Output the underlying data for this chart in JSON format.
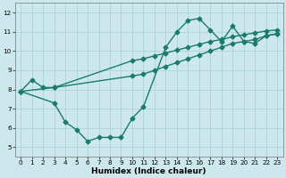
{
  "xlabel": "Humidex (Indice chaleur)",
  "bg_color": "#cce8ec",
  "grid_color": "#aad4d8",
  "line_color": "#1a7a6e",
  "xlim": [
    -0.5,
    23.5
  ],
  "ylim": [
    4.5,
    12.5
  ],
  "xticks": [
    0,
    1,
    2,
    3,
    4,
    5,
    6,
    7,
    8,
    9,
    10,
    11,
    12,
    13,
    14,
    15,
    16,
    17,
    18,
    19,
    20,
    21,
    22,
    23
  ],
  "yticks": [
    5,
    6,
    7,
    8,
    9,
    10,
    11,
    12
  ],
  "line1_x": [
    0,
    1,
    2,
    3,
    10,
    11,
    12,
    13,
    14,
    15,
    16,
    17,
    18,
    19,
    20,
    21,
    22,
    23
  ],
  "line1_y": [
    7.9,
    8.5,
    8.1,
    8.1,
    8.7,
    8.8,
    9.0,
    9.2,
    9.4,
    9.6,
    9.8,
    10.0,
    10.2,
    10.4,
    10.5,
    10.6,
    10.8,
    10.9
  ],
  "line2_x": [
    0,
    3,
    4,
    5,
    6,
    7,
    8,
    9,
    10,
    11,
    13,
    14,
    15,
    16,
    17,
    18,
    19,
    20,
    21,
    22,
    23
  ],
  "line2_y": [
    7.9,
    7.3,
    6.3,
    5.9,
    5.3,
    5.5,
    5.5,
    5.5,
    6.5,
    7.1,
    10.2,
    11.0,
    11.6,
    11.7,
    11.1,
    10.5,
    11.3,
    10.5,
    10.4,
    10.8,
    10.9
  ],
  "line3_x": [
    0,
    3,
    10,
    11,
    12,
    13,
    14,
    15,
    16,
    17,
    18,
    19,
    20,
    21,
    22,
    23
  ],
  "line3_y": [
    7.9,
    8.1,
    9.5,
    9.6,
    9.75,
    9.9,
    10.05,
    10.2,
    10.35,
    10.5,
    10.6,
    10.75,
    10.85,
    10.95,
    11.05,
    11.1
  ],
  "marker_size": 2.5,
  "line_width": 1.0,
  "tick_fontsize": 5.2,
  "xlabel_fontsize": 6.5
}
